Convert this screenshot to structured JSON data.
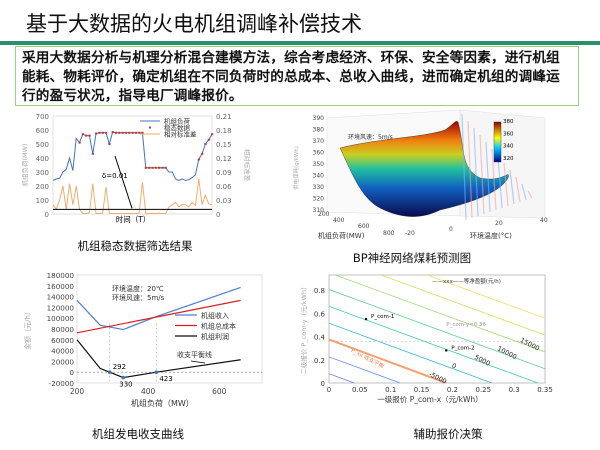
{
  "title": "基于大数据的火电机组调峰补偿技术",
  "description": "采用大数据分析与机理分析混合建模方法，综合考虑经济、环保、安全等因素，进行机组能耗、物耗评价，确定机组在不同负荷时的总成本、总收入曲线，进而确定机组的调峰运行的盈亏状况，指导电厂调峰报价。",
  "captions": {
    "c1": "机组稳态数据筛选结果",
    "c2": "BP神经网络煤耗预测图",
    "c3": "机组发电收支曲线",
    "c4": "辅助报价决策"
  },
  "colors": {
    "green_bar": "#2a8f6a",
    "box_border": "#9cd47c",
    "blue": "#4472c4",
    "red": "#c0392b",
    "orange": "#f4a460"
  },
  "chart_data": [
    {
      "type": "line",
      "xlabel": "时间（T）",
      "ylabel": "机组负荷(MW)",
      "y2label": "相对标准差",
      "ylim": [
        0,
        700
      ],
      "y2lim": [
        0,
        0.21
      ],
      "yticks": [
        0,
        100,
        200,
        300,
        400,
        500,
        600,
        700
      ],
      "y2ticks": [
        "0",
        "0.03",
        "0.06",
        "0.09",
        "0.12",
        "0.15",
        "0.18",
        "0.21"
      ],
      "legend": [
        "机组负荷",
        "稳态数据",
        "相对标准差"
      ],
      "annotation": "δ=0.01",
      "threshold": 0.01,
      "load": [
        240,
        250,
        255,
        300,
        320,
        400,
        310,
        540,
        510,
        570,
        560,
        560,
        430,
        575,
        580,
        580,
        580,
        500,
        585,
        580,
        580,
        580,
        580,
        580,
        580,
        580,
        580,
        580,
        330,
        330,
        330,
        330,
        330,
        330,
        330,
        300,
        300,
        250,
        240,
        250,
        240,
        245,
        260,
        280,
        390,
        430,
        500,
        530,
        570
      ],
      "std": [
        0.02,
        0.01,
        0.03,
        0.06,
        0.01,
        0.065,
        0.02,
        0.06,
        0.01,
        0.001,
        0.001,
        0.003,
        0.065,
        0.001,
        0.001,
        0.002,
        0.058,
        0.001,
        0.001,
        0.001,
        0.001,
        0.001,
        0.001,
        0.001,
        0.001,
        0.001,
        0.002,
        0.068,
        0.002,
        0.001,
        0.001,
        0.001,
        0.002,
        0.001,
        0.001,
        0.015,
        0.02,
        0.025,
        0.015,
        0.02,
        0.02,
        0.015,
        0.025,
        0.018,
        0.075,
        0.02,
        0.04,
        0.022,
        0.02
      ]
    },
    {
      "type": "surface",
      "xlabel": "机组负荷(MW)",
      "ylabel": "环境温度(°C)",
      "zlabel": "供电煤耗(g/kWh)",
      "annotation": "环境风速：5m/s",
      "zticks": [
        310,
        320,
        330,
        340,
        350,
        360,
        370,
        380,
        390
      ],
      "xticks": [
        200,
        400,
        600,
        800
      ],
      "yticks": [
        -20,
        0,
        20,
        40
      ],
      "colorbar": [
        320,
        340,
        360,
        380
      ]
    },
    {
      "type": "line",
      "xlabel": "机组负荷（MW）",
      "ylabel": "金额（元/h）",
      "xlim": [
        200,
        720
      ],
      "ylim": [
        -20000,
        180000
      ],
      "xticks": [
        200,
        400,
        600
      ],
      "yticks": [
        -20000,
        0,
        20000,
        40000,
        60000,
        80000,
        100000,
        120000,
        140000,
        160000,
        180000
      ],
      "annotation": [
        "环境温度：20℃",
        "环境风速：5m/s"
      ],
      "arrow_label": "收支平衡线",
      "series": [
        {
          "name": "机组收入",
          "color": "#4a7fd0",
          "x": [
            200,
            265,
            330,
            423,
            660
          ],
          "y": [
            133000,
            87000,
            79000,
            103000,
            157000
          ]
        },
        {
          "name": "机组总成本",
          "color": "#d62020",
          "x": [
            200,
            660
          ],
          "y": [
            73000,
            133000
          ]
        },
        {
          "name": "机组利润",
          "color": "#111111",
          "x": [
            200,
            265,
            292,
            330,
            423,
            660
          ],
          "y": [
            60000,
            7000,
            0,
            -10000,
            0,
            23000
          ]
        }
      ],
      "points": [
        {
          "x": 292,
          "label": "292",
          "y": 0
        },
        {
          "x": 330,
          "label": "330",
          "y": -10000
        },
        {
          "x": 423,
          "label": "423",
          "y": 0
        }
      ]
    },
    {
      "type": "contour",
      "xlabel": "一级报价 P_com-x（元/kWh）",
      "ylabel": "二级报价 P_com-y（元/kWh）",
      "xlim": [
        0,
        0.35
      ],
      "ylim": [
        0,
        0.93
      ],
      "xticks": [
        "0",
        "0.05",
        "0.1",
        "0.15",
        "0.2",
        "0.25",
        "0.3",
        "0.35"
      ],
      "yticks": [
        "0",
        "0.2",
        "0.4",
        "0.6",
        "0.8"
      ],
      "legend": "——xxx——等净盈额(元/h)",
      "levels": [
        -20000,
        -15000,
        -10000,
        -5000,
        0,
        5000,
        10000,
        15000,
        20000,
        25000
      ],
      "points": [
        {
          "label": "P_com-1",
          "x": 0.06,
          "y": 0.55
        },
        {
          "label": "P_com-2",
          "x": 0.19,
          "y": 0.28
        }
      ],
      "hline": 0.36,
      "hline_label": "P_com-y=0.36",
      "orange_label": "P_xx 收支平衡"
    }
  ]
}
